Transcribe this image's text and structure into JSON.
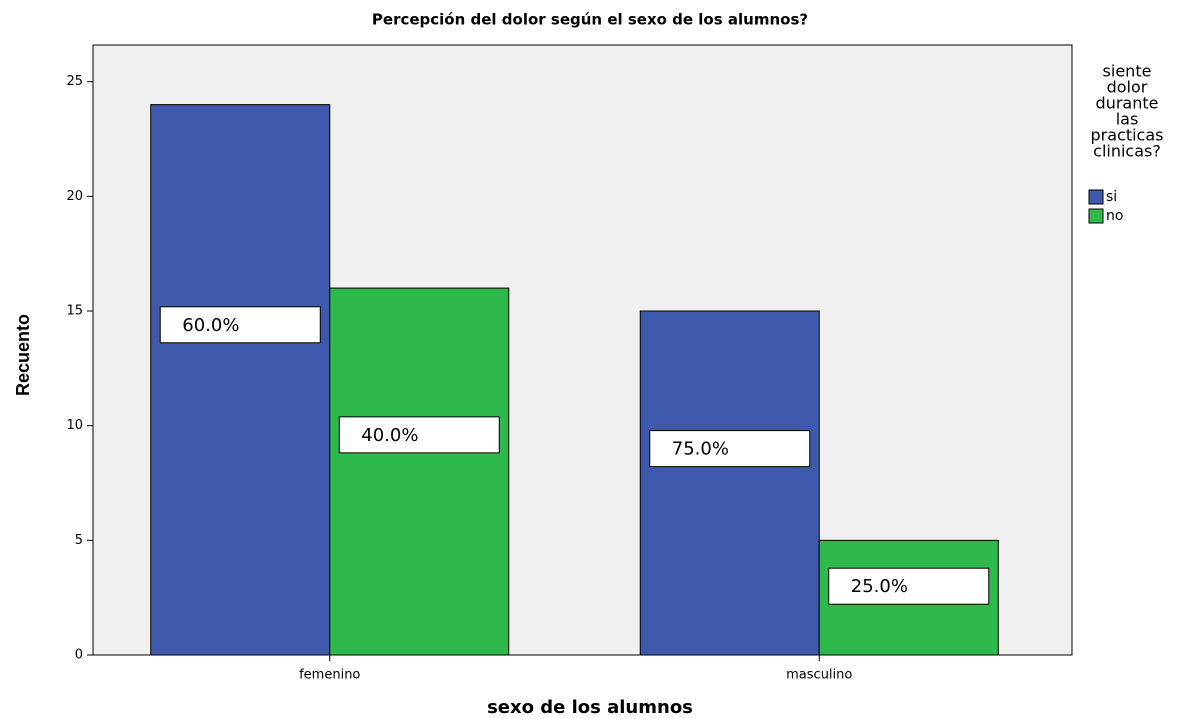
{
  "chart_data": {
    "type": "bar",
    "title": "Percepción del dolor según el sexo de los alumnos?",
    "x_label": "sexo de los alumnos",
    "y_label": "Recuento",
    "categories": [
      "femenino",
      "masculino"
    ],
    "series": [
      {
        "name": "si",
        "color": "#3e58ac",
        "values": [
          24,
          15
        ],
        "percent_labels": [
          "60.0%",
          "75.0%"
        ]
      },
      {
        "name": "no",
        "color": "#2fb84b",
        "values": [
          16,
          5
        ],
        "percent_labels": [
          "40.0%",
          "25.0%"
        ]
      }
    ],
    "legend_title": [
      "siente",
      "dolor",
      "durante",
      "las",
      "practicas",
      "clinicas?"
    ],
    "ylim": [
      0,
      26.6
    ],
    "yticks": [
      0,
      5,
      10,
      15,
      20,
      25
    ],
    "grid": false
  }
}
